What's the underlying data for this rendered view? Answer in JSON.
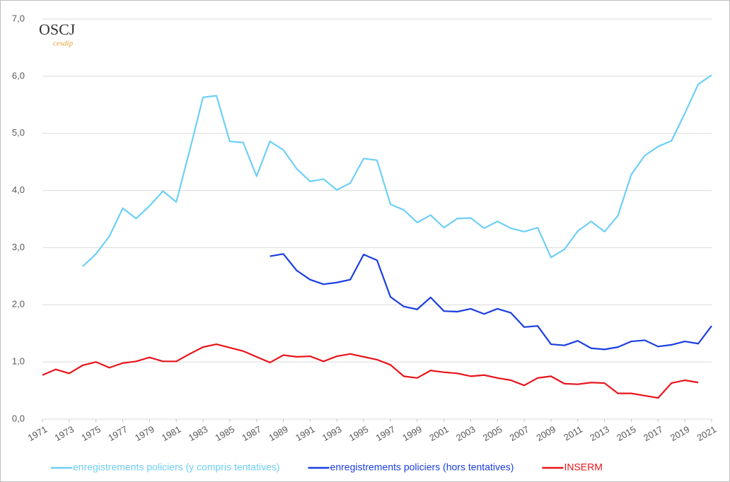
{
  "chart_data": {
    "type": "line",
    "logo": "OSCJ",
    "logo_subtitle": "cesdip",
    "x": [
      1971,
      1972,
      1973,
      1974,
      1975,
      1976,
      1977,
      1978,
      1979,
      1980,
      1981,
      1982,
      1983,
      1984,
      1985,
      1986,
      1987,
      1988,
      1989,
      1990,
      1991,
      1992,
      1993,
      1994,
      1995,
      1996,
      1997,
      1998,
      1999,
      2000,
      2001,
      2002,
      2003,
      2004,
      2005,
      2006,
      2007,
      2008,
      2009,
      2010,
      2011,
      2012,
      2013,
      2014,
      2015,
      2016,
      2017,
      2018,
      2019,
      2020,
      2021
    ],
    "xlim": [
      1971,
      2021
    ],
    "xticks": [
      1971,
      1973,
      1975,
      1977,
      1979,
      1981,
      1983,
      1985,
      1987,
      1989,
      1991,
      1993,
      1995,
      1997,
      1999,
      2001,
      2003,
      2005,
      2007,
      2009,
      2011,
      2013,
      2015,
      2017,
      2019,
      2021
    ],
    "ylim": [
      0,
      7
    ],
    "yticks": [
      {
        "value": 0,
        "label": "0,0"
      },
      {
        "value": 1,
        "label": "1,0"
      },
      {
        "value": 2,
        "label": "2,0"
      },
      {
        "value": 3,
        "label": "3,0"
      },
      {
        "value": 4,
        "label": "4,0"
      },
      {
        "value": 5,
        "label": "5,0"
      },
      {
        "value": 6,
        "label": "6,0"
      },
      {
        "value": 7,
        "label": "7,0"
      }
    ],
    "grid": true,
    "legend": "bottom",
    "series": [
      {
        "name": "enregistrements policiers (y compris tentatives)",
        "color": "#6dcff6",
        "values": [
          null,
          null,
          null,
          2.67,
          2.89,
          3.2,
          3.69,
          3.51,
          3.73,
          3.99,
          3.8,
          4.7,
          5.63,
          5.66,
          4.86,
          4.84,
          4.25,
          4.86,
          4.71,
          4.38,
          4.16,
          4.2,
          4.01,
          4.13,
          4.56,
          4.53,
          3.76,
          3.66,
          3.44,
          3.57,
          3.35,
          3.51,
          3.52,
          3.34,
          3.46,
          3.34,
          3.28,
          3.35,
          2.83,
          2.97,
          3.29,
          3.46,
          3.28,
          3.56,
          4.28,
          4.61,
          4.77,
          4.87,
          5.35,
          5.86,
          6.02
        ]
      },
      {
        "name": "enregistrements policiers (hors tentatives)",
        "color": "#1a3ee0",
        "values": [
          null,
          null,
          null,
          null,
          null,
          null,
          null,
          null,
          null,
          null,
          null,
          null,
          null,
          null,
          null,
          null,
          null,
          2.85,
          2.89,
          2.6,
          2.44,
          2.36,
          2.39,
          2.44,
          2.88,
          2.78,
          2.14,
          1.97,
          1.92,
          2.13,
          1.89,
          1.88,
          1.93,
          1.84,
          1.93,
          1.86,
          1.61,
          1.63,
          1.31,
          1.29,
          1.37,
          1.24,
          1.22,
          1.26,
          1.36,
          1.38,
          1.27,
          1.3,
          1.36,
          1.32,
          1.63
        ]
      },
      {
        "name": "INSERM",
        "color": "#e8141b",
        "values": [
          0.77,
          0.87,
          0.8,
          0.94,
          1.0,
          0.9,
          0.98,
          1.01,
          1.08,
          1.01,
          1.01,
          1.14,
          1.26,
          1.31,
          1.25,
          1.19,
          1.09,
          0.99,
          1.12,
          1.09,
          1.1,
          1.01,
          1.1,
          1.14,
          1.09,
          1.04,
          0.95,
          0.75,
          0.72,
          0.85,
          0.82,
          0.8,
          0.75,
          0.77,
          0.72,
          0.68,
          0.59,
          0.72,
          0.75,
          0.62,
          0.61,
          0.64,
          0.63,
          0.45,
          0.45,
          0.41,
          0.37,
          0.63,
          0.68,
          0.64,
          null
        ]
      }
    ]
  }
}
